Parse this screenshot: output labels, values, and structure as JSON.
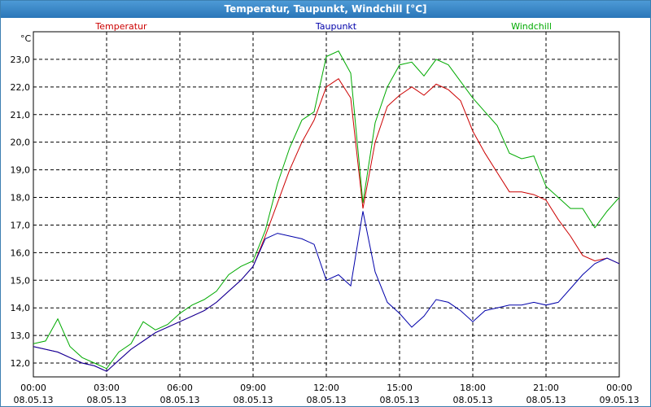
{
  "window": {
    "title": "Temperatur, Taupunkt, Windchill [°C]"
  },
  "chart_data": {
    "type": "line",
    "ylabel": "°C",
    "ylim": [
      11.5,
      24.0
    ],
    "y_ticks": [
      "12,0",
      "13,0",
      "14,0",
      "15,0",
      "16,0",
      "17,0",
      "18,0",
      "19,0",
      "20,0",
      "21,0",
      "22,0",
      "23,0"
    ],
    "y_tick_values": [
      12,
      13,
      14,
      15,
      16,
      17,
      18,
      19,
      20,
      21,
      22,
      23
    ],
    "xlim": [
      0,
      24
    ],
    "x_ticks": [
      {
        "time": "00:00",
        "date": "08.05.13"
      },
      {
        "time": "03:00",
        "date": "08.05.13"
      },
      {
        "time": "06:00",
        "date": "08.05.13"
      },
      {
        "time": "09:00",
        "date": "08.05.13"
      },
      {
        "time": "12:00",
        "date": "08.05.13"
      },
      {
        "time": "15:00",
        "date": "08.05.13"
      },
      {
        "time": "18:00",
        "date": "08.05.13"
      },
      {
        "time": "21:00",
        "date": "08.05.13"
      },
      {
        "time": "00:00",
        "date": "09.05.13"
      }
    ],
    "x_tick_hours": [
      0,
      3,
      6,
      9,
      12,
      15,
      18,
      21,
      24
    ],
    "grid": true,
    "series": [
      {
        "name": "Temperatur",
        "color": "#cc0000",
        "x": [
          0,
          0.5,
          1,
          1.5,
          2,
          2.5,
          3,
          3.5,
          4,
          4.5,
          5,
          5.5,
          6,
          6.5,
          7,
          7.5,
          8,
          8.5,
          9,
          9.5,
          10,
          10.5,
          11,
          11.5,
          12,
          12.5,
          13,
          13.5,
          14,
          14.5,
          15,
          15.5,
          16,
          16.5,
          17,
          17.5,
          18,
          18.5,
          19,
          19.5,
          20,
          20.5,
          21,
          21.5,
          22,
          22.5,
          23,
          23.5,
          24
        ],
        "y": [
          12.6,
          12.5,
          12.4,
          12.2,
          12.0,
          11.9,
          11.7,
          12.1,
          12.5,
          12.8,
          13.1,
          13.3,
          13.5,
          13.7,
          13.9,
          14.2,
          14.6,
          15.0,
          15.5,
          16.6,
          17.8,
          19.0,
          20.0,
          20.8,
          22.0,
          22.3,
          21.6,
          17.6,
          20.0,
          21.3,
          21.7,
          22.0,
          21.7,
          22.1,
          21.9,
          21.5,
          20.4,
          19.6,
          18.9,
          18.2,
          18.2,
          18.1,
          17.9,
          17.2,
          16.6,
          15.9,
          15.7,
          15.8,
          15.6
        ]
      },
      {
        "name": "Taupunkt",
        "color": "#0000aa",
        "x": [
          0,
          0.5,
          1,
          1.5,
          2,
          2.5,
          3,
          3.5,
          4,
          4.5,
          5,
          5.5,
          6,
          6.5,
          7,
          7.5,
          8,
          8.5,
          9,
          9.5,
          10,
          10.5,
          11,
          11.5,
          12,
          12.5,
          13,
          13.5,
          14,
          14.5,
          15,
          15.5,
          16,
          16.5,
          17,
          17.5,
          18,
          18.5,
          19,
          19.5,
          20,
          20.5,
          21,
          21.5,
          22,
          22.5,
          23,
          23.5,
          24
        ],
        "y": [
          12.6,
          12.5,
          12.4,
          12.2,
          12.0,
          11.9,
          11.7,
          12.1,
          12.5,
          12.8,
          13.1,
          13.3,
          13.5,
          13.7,
          13.9,
          14.2,
          14.6,
          15.0,
          15.5,
          16.5,
          16.7,
          16.6,
          16.5,
          16.3,
          15.0,
          15.2,
          14.8,
          17.5,
          15.3,
          14.2,
          13.8,
          13.3,
          13.7,
          14.3,
          14.2,
          13.9,
          13.5,
          13.9,
          14.0,
          14.1,
          14.1,
          14.2,
          14.1,
          14.2,
          14.7,
          15.2,
          15.6,
          15.8,
          15.6
        ]
      },
      {
        "name": "Windchill",
        "color": "#00aa00",
        "x": [
          0,
          0.5,
          1,
          1.5,
          2,
          2.5,
          3,
          3.5,
          4,
          4.5,
          5,
          5.5,
          6,
          6.5,
          7,
          7.5,
          8,
          8.5,
          9,
          9.5,
          10,
          10.5,
          11,
          11.5,
          12,
          12.5,
          13,
          13.5,
          14,
          14.5,
          15,
          15.5,
          16,
          16.5,
          17,
          17.5,
          18,
          18.5,
          19,
          19.5,
          20,
          20.5,
          21,
          21.5,
          22,
          22.5,
          23,
          23.5,
          24
        ],
        "y": [
          12.7,
          12.8,
          13.6,
          12.6,
          12.2,
          12.0,
          11.8,
          12.4,
          12.7,
          13.5,
          13.2,
          13.4,
          13.8,
          14.1,
          14.3,
          14.6,
          15.2,
          15.5,
          15.7,
          16.8,
          18.5,
          19.8,
          20.8,
          21.1,
          23.1,
          23.3,
          22.5,
          17.8,
          20.7,
          22.0,
          22.8,
          22.9,
          22.4,
          23.0,
          22.8,
          22.2,
          21.6,
          21.1,
          20.6,
          19.6,
          19.4,
          19.5,
          18.4,
          18.0,
          17.6,
          17.6,
          16.9,
          17.5,
          18.0
        ]
      }
    ]
  }
}
